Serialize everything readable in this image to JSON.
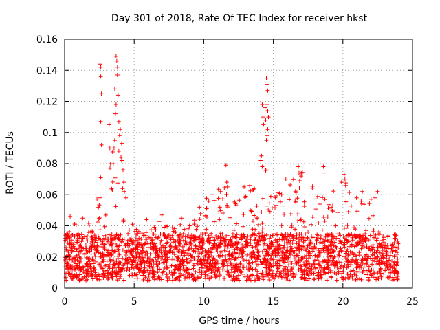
{
  "chart_data": {
    "type": "scatter",
    "title": "Day 301 of 2018, Rate Of TEC Index for receiver hkst",
    "xlabel": "GPS time / hours",
    "ylabel": "ROTI / TECUs",
    "xlim": [
      0,
      25
    ],
    "ylim": [
      0,
      0.16
    ],
    "xticks": [
      0,
      5,
      10,
      15,
      20,
      25
    ],
    "xtick_labels": [
      "0",
      "5",
      "10",
      "15",
      "20",
      "25"
    ],
    "yticks": [
      0,
      0.02,
      0.04,
      0.06,
      0.08,
      0.1,
      0.12,
      0.14,
      0.16
    ],
    "ytick_labels": [
      "0",
      "0.02",
      "0.04",
      "0.06",
      "0.08",
      "0.1",
      "0.12",
      "0.14",
      "0.16"
    ],
    "grid": true,
    "marker": "+",
    "series_color": "#ff0000",
    "x_data_range": [
      0,
      24
    ],
    "baseline_band": [
      0.005,
      0.035
    ],
    "envelope": [
      {
        "x": 0.0,
        "y": 0.042
      },
      {
        "x": 0.5,
        "y": 0.045
      },
      {
        "x": 1.0,
        "y": 0.04
      },
      {
        "x": 1.5,
        "y": 0.044
      },
      {
        "x": 2.0,
        "y": 0.042
      },
      {
        "x": 2.5,
        "y": 0.07
      },
      {
        "x": 3.0,
        "y": 0.065
      },
      {
        "x": 3.5,
        "y": 0.095
      },
      {
        "x": 4.0,
        "y": 0.08
      },
      {
        "x": 4.5,
        "y": 0.045
      },
      {
        "x": 5.0,
        "y": 0.04
      },
      {
        "x": 6.0,
        "y": 0.04
      },
      {
        "x": 7.0,
        "y": 0.044
      },
      {
        "x": 8.0,
        "y": 0.04
      },
      {
        "x": 9.0,
        "y": 0.044
      },
      {
        "x": 10.0,
        "y": 0.06
      },
      {
        "x": 11.0,
        "y": 0.062
      },
      {
        "x": 11.5,
        "y": 0.078
      },
      {
        "x": 12.0,
        "y": 0.058
      },
      {
        "x": 13.0,
        "y": 0.06
      },
      {
        "x": 14.0,
        "y": 0.07
      },
      {
        "x": 14.5,
        "y": 0.08
      },
      {
        "x": 15.0,
        "y": 0.06
      },
      {
        "x": 16.0,
        "y": 0.068
      },
      {
        "x": 17.0,
        "y": 0.076
      },
      {
        "x": 18.0,
        "y": 0.07
      },
      {
        "x": 19.0,
        "y": 0.065
      },
      {
        "x": 20.0,
        "y": 0.072
      },
      {
        "x": 21.0,
        "y": 0.058
      },
      {
        "x": 22.0,
        "y": 0.058
      },
      {
        "x": 23.0,
        "y": 0.04
      },
      {
        "x": 24.0,
        "y": 0.03
      }
    ],
    "spike_points": [
      {
        "x": 2.55,
        "y": 0.144
      },
      {
        "x": 2.6,
        "y": 0.142
      },
      {
        "x": 2.6,
        "y": 0.136
      },
      {
        "x": 2.65,
        "y": 0.125
      },
      {
        "x": 2.6,
        "y": 0.107
      },
      {
        "x": 2.65,
        "y": 0.092
      },
      {
        "x": 2.6,
        "y": 0.071
      },
      {
        "x": 2.55,
        "y": 0.058
      },
      {
        "x": 3.2,
        "y": 0.105
      },
      {
        "x": 3.25,
        "y": 0.09
      },
      {
        "x": 3.3,
        "y": 0.08
      },
      {
        "x": 3.5,
        "y": 0.08
      },
      {
        "x": 3.6,
        "y": 0.128
      },
      {
        "x": 3.65,
        "y": 0.112
      },
      {
        "x": 3.7,
        "y": 0.149
      },
      {
        "x": 3.75,
        "y": 0.146
      },
      {
        "x": 3.8,
        "y": 0.142
      },
      {
        "x": 3.8,
        "y": 0.137
      },
      {
        "x": 3.85,
        "y": 0.124
      },
      {
        "x": 3.7,
        "y": 0.118
      },
      {
        "x": 3.9,
        "y": 0.107
      },
      {
        "x": 4.0,
        "y": 0.102
      },
      {
        "x": 3.95,
        "y": 0.098
      },
      {
        "x": 4.1,
        "y": 0.093
      },
      {
        "x": 4.05,
        "y": 0.084
      },
      {
        "x": 4.1,
        "y": 0.082
      },
      {
        "x": 3.6,
        "y": 0.095
      },
      {
        "x": 3.55,
        "y": 0.09
      },
      {
        "x": 3.9,
        "y": 0.088
      },
      {
        "x": 4.2,
        "y": 0.076
      },
      {
        "x": 4.25,
        "y": 0.068
      },
      {
        "x": 4.3,
        "y": 0.062
      },
      {
        "x": 4.4,
        "y": 0.058
      },
      {
        "x": 11.6,
        "y": 0.079
      },
      {
        "x": 11.65,
        "y": 0.068
      },
      {
        "x": 11.7,
        "y": 0.065
      },
      {
        "x": 14.2,
        "y": 0.118
      },
      {
        "x": 14.25,
        "y": 0.11
      },
      {
        "x": 14.3,
        "y": 0.105
      },
      {
        "x": 14.4,
        "y": 0.116
      },
      {
        "x": 14.45,
        "y": 0.108
      },
      {
        "x": 14.5,
        "y": 0.135
      },
      {
        "x": 14.55,
        "y": 0.131
      },
      {
        "x": 14.6,
        "y": 0.127
      },
      {
        "x": 14.55,
        "y": 0.118
      },
      {
        "x": 14.6,
        "y": 0.114
      },
      {
        "x": 14.65,
        "y": 0.11
      },
      {
        "x": 14.6,
        "y": 0.102
      },
      {
        "x": 14.55,
        "y": 0.098
      },
      {
        "x": 14.5,
        "y": 0.095
      },
      {
        "x": 14.15,
        "y": 0.085
      },
      {
        "x": 14.1,
        "y": 0.082
      },
      {
        "x": 14.2,
        "y": 0.078
      },
      {
        "x": 15.9,
        "y": 0.07
      },
      {
        "x": 16.8,
        "y": 0.078
      },
      {
        "x": 16.85,
        "y": 0.074
      },
      {
        "x": 17.0,
        "y": 0.072
      },
      {
        "x": 18.6,
        "y": 0.078
      },
      {
        "x": 18.65,
        "y": 0.074
      },
      {
        "x": 20.1,
        "y": 0.073
      },
      {
        "x": 20.15,
        "y": 0.07
      },
      {
        "x": 20.2,
        "y": 0.066
      },
      {
        "x": 19.9,
        "y": 0.068
      },
      {
        "x": 12.9,
        "y": 0.065
      },
      {
        "x": 13.3,
        "y": 0.066
      },
      {
        "x": 13.5,
        "y": 0.063
      },
      {
        "x": 11.2,
        "y": 0.062
      },
      {
        "x": 10.6,
        "y": 0.06
      },
      {
        "x": 21.4,
        "y": 0.062
      },
      {
        "x": 22.5,
        "y": 0.062
      },
      {
        "x": 22.3,
        "y": 0.058
      },
      {
        "x": 1.3,
        "y": 0.045
      },
      {
        "x": 0.4,
        "y": 0.046
      },
      {
        "x": 7.0,
        "y": 0.047
      },
      {
        "x": 5.9,
        "y": 0.044
      },
      {
        "x": 8.4,
        "y": 0.045
      },
      {
        "x": 9.7,
        "y": 0.052
      },
      {
        "x": 23.7,
        "y": 0.032
      }
    ]
  }
}
